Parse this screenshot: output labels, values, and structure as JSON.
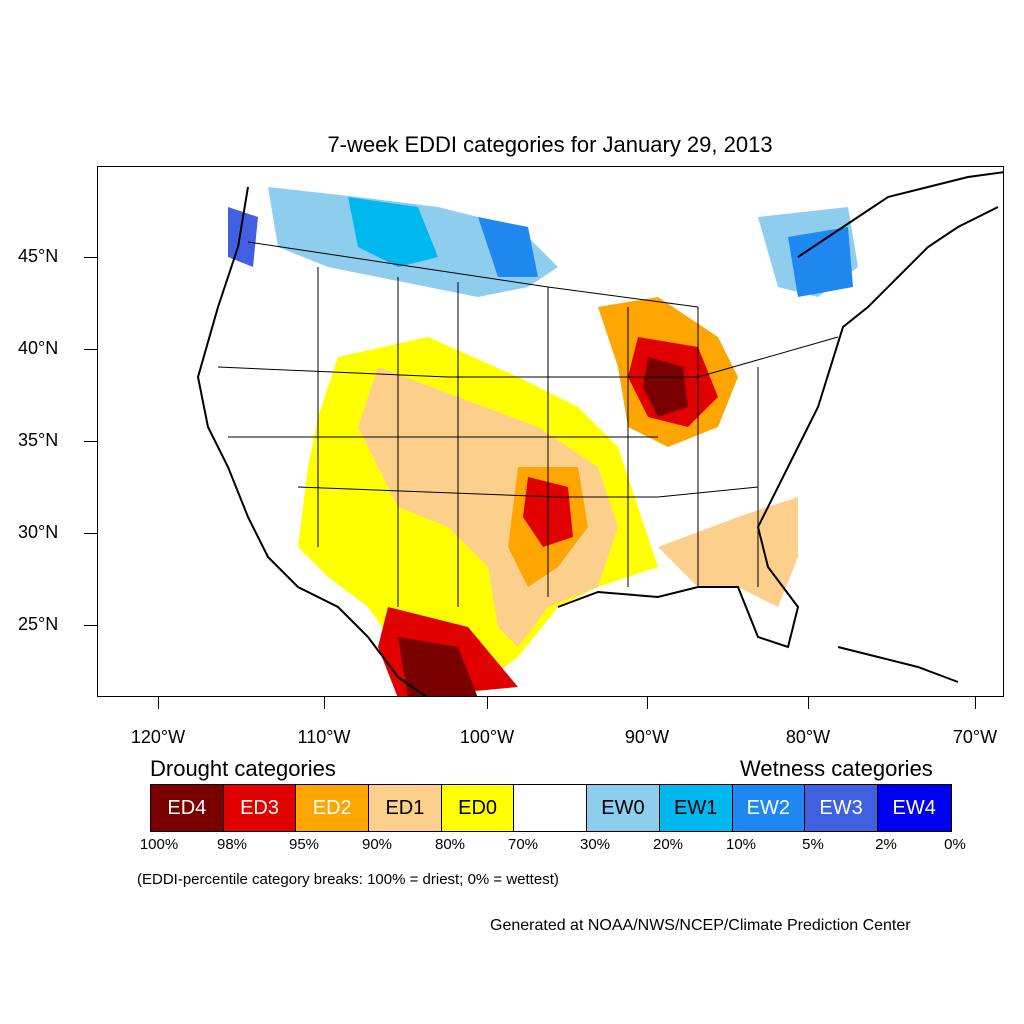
{
  "title": "7-week EDDI categories for January 29, 2013",
  "lat_labels": [
    "45°N",
    "40°N",
    "35°N",
    "30°N",
    "25°N"
  ],
  "lon_labels": [
    "120°W",
    "110°W",
    "100°W",
    "90°W",
    "80°W",
    "70°W"
  ],
  "legend": {
    "drought_heading": "Drought categories",
    "wetness_heading": "Wetness categories",
    "categories": [
      {
        "label": "ED4",
        "color": "#7a0000",
        "text_color": "#ffffff"
      },
      {
        "label": "ED3",
        "color": "#e00000",
        "text_color": "#ffffff"
      },
      {
        "label": "ED2",
        "color": "#ffa500",
        "text_color": "#ffffff"
      },
      {
        "label": "ED1",
        "color": "#fcd08c",
        "text_color": "#000000"
      },
      {
        "label": "ED0",
        "color": "#ffff00",
        "text_color": "#000000"
      },
      {
        "label": "",
        "color": "#ffffff",
        "text_color": "#000000"
      },
      {
        "label": "EW0",
        "color": "#8fcdee",
        "text_color": "#000000"
      },
      {
        "label": "EW1",
        "color": "#00b7ee",
        "text_color": "#000000"
      },
      {
        "label": "EW2",
        "color": "#1e88f0",
        "text_color": "#ffffff"
      },
      {
        "label": "EW3",
        "color": "#4060e0",
        "text_color": "#ffffff"
      },
      {
        "label": "EW4",
        "color": "#0000f0",
        "text_color": "#ffffff"
      }
    ],
    "breaks": [
      "100%",
      "98%",
      "95%",
      "90%",
      "80%",
      "70%",
      "30%",
      "20%",
      "10%",
      "5%",
      "2%",
      "0%"
    ]
  },
  "note": "(EDDI-percentile category breaks: 100% = driest; 0% = wettest)",
  "credit": "Generated at NOAA/NWS/NCEP/Climate Prediction Center"
}
